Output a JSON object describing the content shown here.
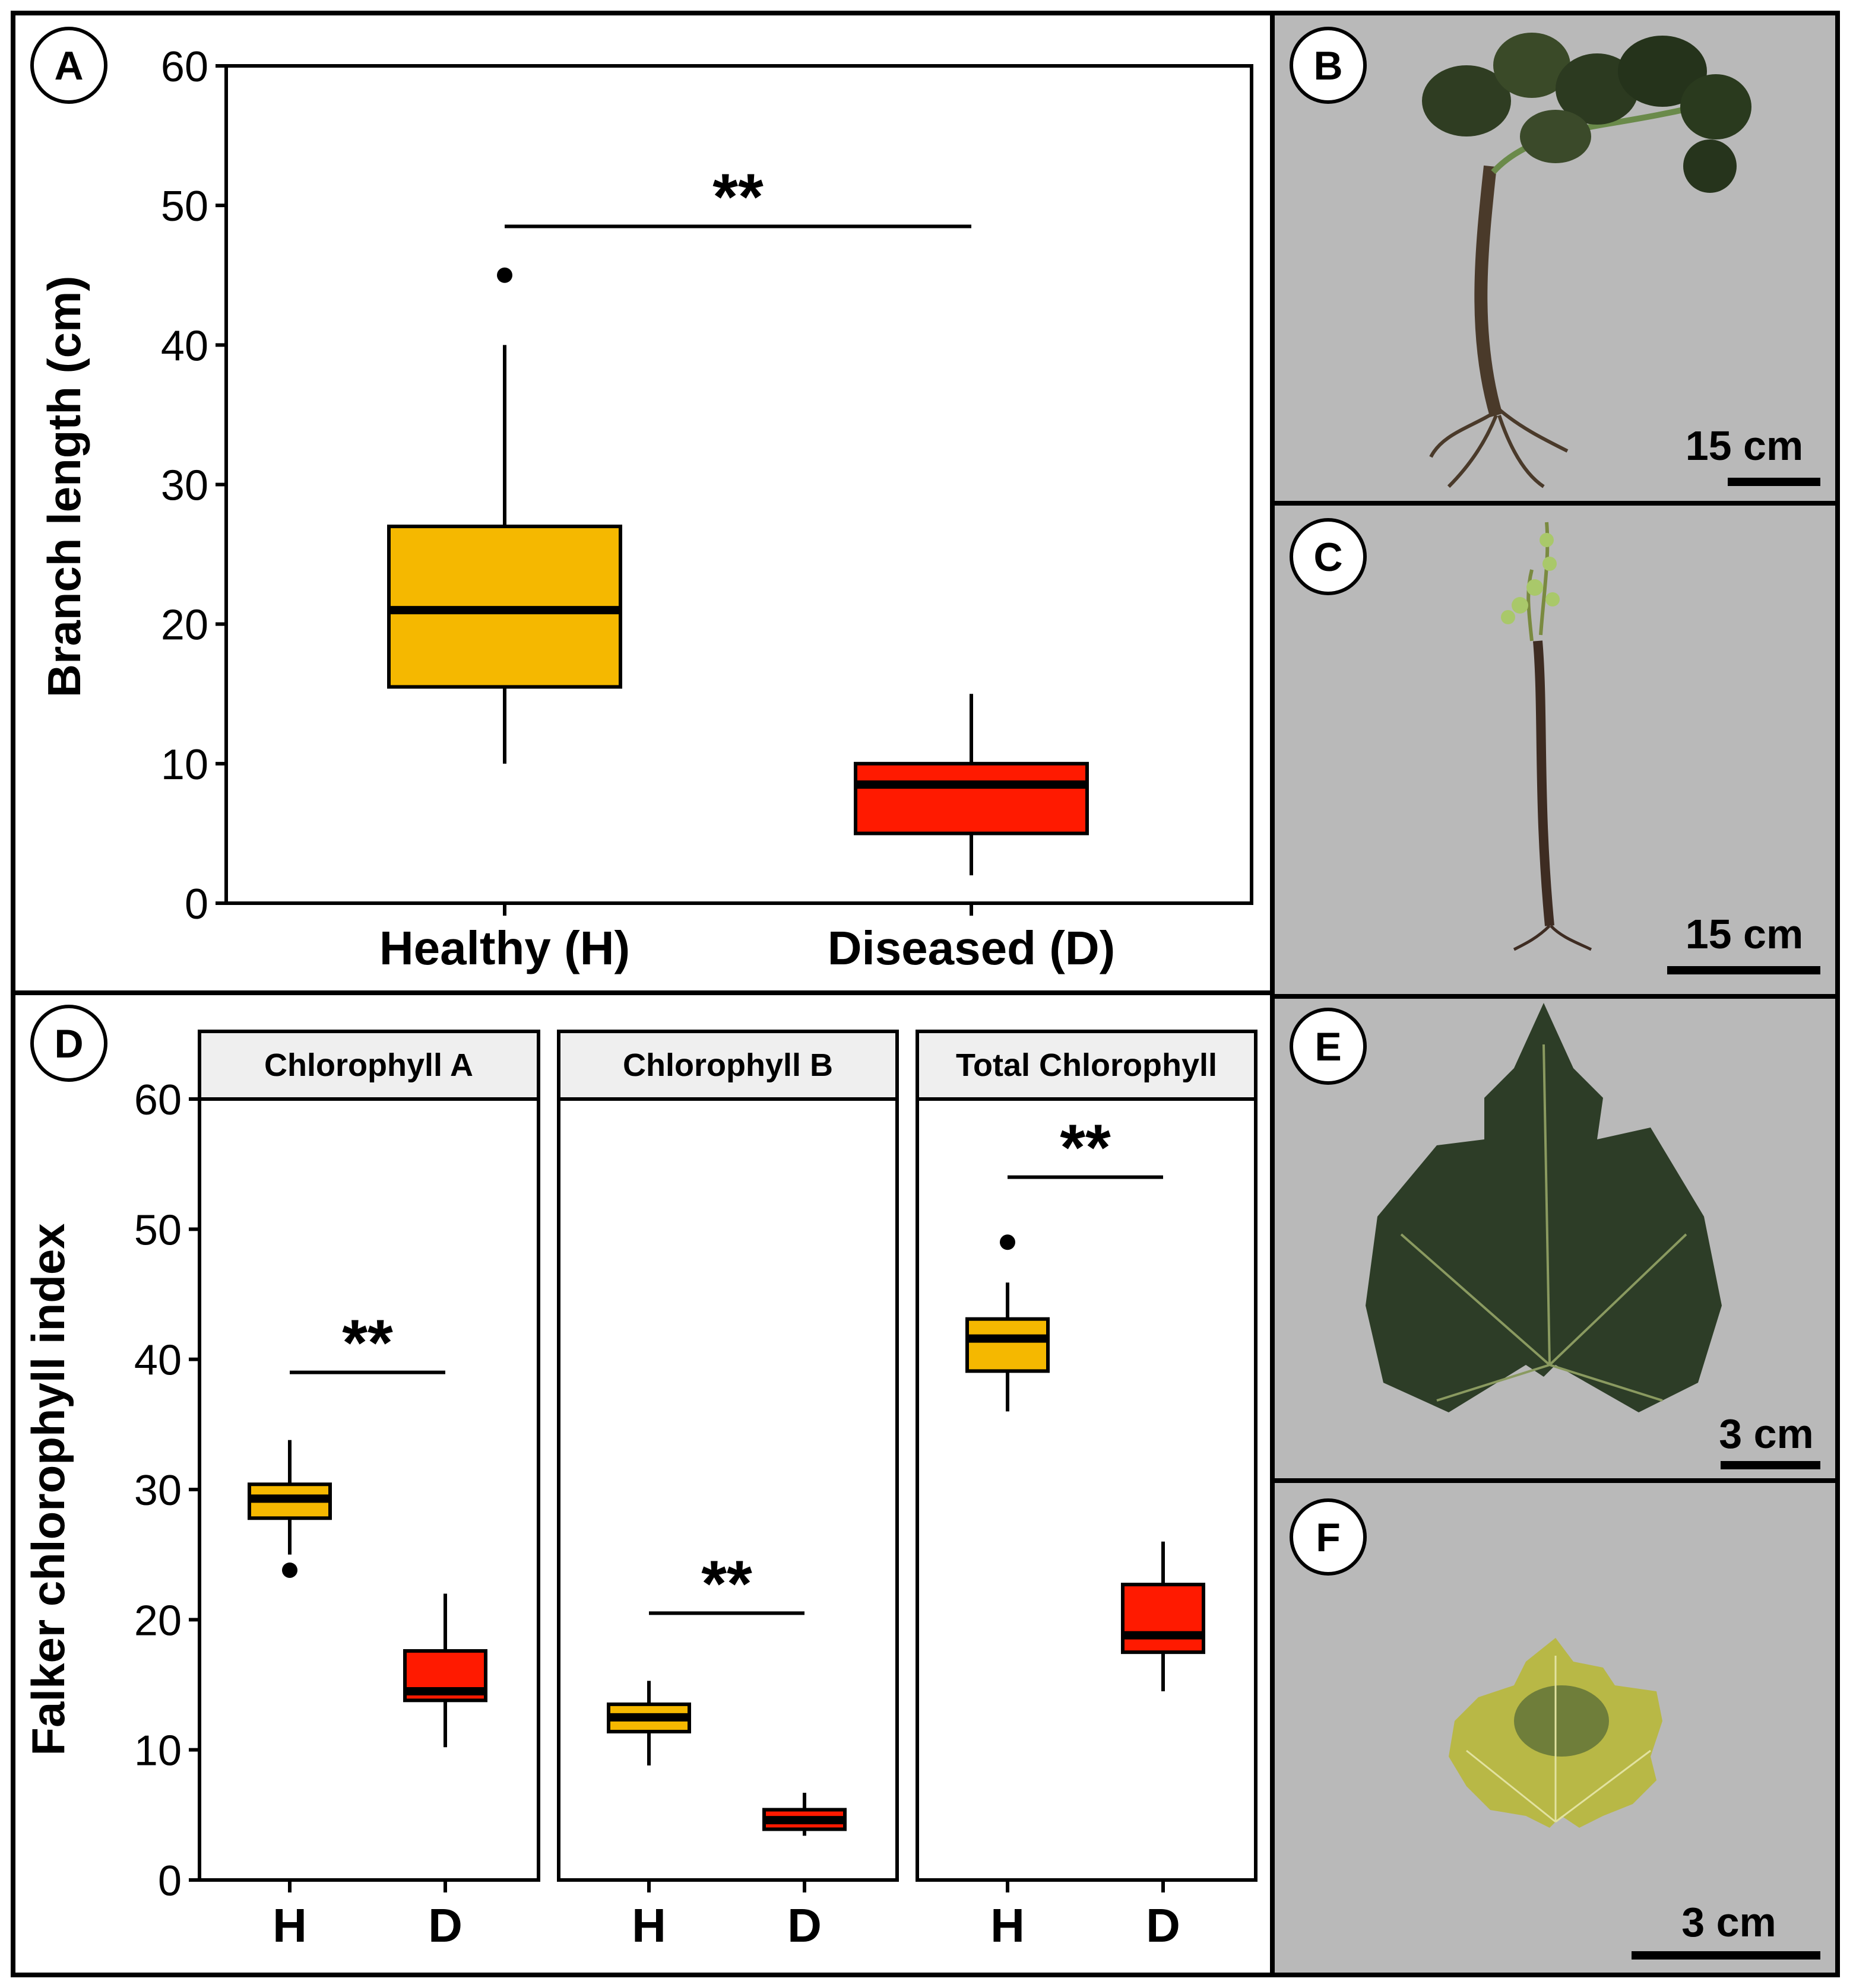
{
  "colors": {
    "healthy": "#f5b800",
    "diseased": "#ff1a00",
    "photo_bg": "#b9b9b9",
    "strip_bg": "#efefef",
    "ink": "#000000"
  },
  "panel_labels": {
    "A": "A",
    "B": "B",
    "C": "C",
    "D": "D",
    "E": "E",
    "F": "F"
  },
  "photos": {
    "B": {
      "scale_bar": "15 cm",
      "subject": "healthy grapevine plant"
    },
    "C": {
      "scale_bar": "15 cm",
      "subject": "diseased grapevine plant"
    },
    "E": {
      "scale_bar": "3 cm",
      "subject": "healthy leaf"
    },
    "F": {
      "scale_bar": "3 cm",
      "subject": "diseased leaf"
    }
  },
  "chart_data": [
    {
      "type": "box",
      "panel": "A",
      "ylabel": "Branch length (cm)",
      "ylim": [
        0,
        60
      ],
      "yticks": [
        0,
        10,
        20,
        30,
        40,
        50,
        60
      ],
      "categories": [
        "Healthy (H)",
        "Diseased (D)"
      ],
      "boxes": [
        {
          "name": "Healthy (H)",
          "color": "#f5b800",
          "min": 10,
          "q1": 15.5,
          "median": 21,
          "q3": 27,
          "max": 40,
          "outliers": [
            45
          ]
        },
        {
          "name": "Diseased (D)",
          "color": "#ff1a00",
          "min": 2,
          "q1": 5,
          "median": 8.5,
          "q3": 10,
          "max": 15,
          "outliers": []
        }
      ],
      "significance": {
        "label": "**",
        "y": 48.5
      }
    },
    {
      "type": "box",
      "panel": "D",
      "ylabel": "Falker chlorophyll index",
      "ylim": [
        0,
        60
      ],
      "yticks": [
        0,
        10,
        20,
        30,
        40,
        50,
        60
      ],
      "facets": [
        {
          "title": "Chlorophyll A",
          "categories": [
            "H",
            "D"
          ],
          "boxes": [
            {
              "name": "H",
              "color": "#f5b800",
              "min": 25,
              "q1": 27.8,
              "median": 29.3,
              "q3": 30.4,
              "max": 33.8,
              "outliers": [
                23.8
              ]
            },
            {
              "name": "D",
              "color": "#ff1a00",
              "min": 10.2,
              "q1": 13.8,
              "median": 14.5,
              "q3": 17.6,
              "max": 22,
              "outliers": []
            }
          ],
          "significance": {
            "label": "**",
            "y": 39
          }
        },
        {
          "title": "Chlorophyll B",
          "categories": [
            "H",
            "D"
          ],
          "boxes": [
            {
              "name": "H",
              "color": "#f5b800",
              "min": 8.8,
              "q1": 11.4,
              "median": 12.5,
              "q3": 13.5,
              "max": 15.3,
              "outliers": []
            },
            {
              "name": "D",
              "color": "#ff1a00",
              "min": 3.4,
              "q1": 3.9,
              "median": 4.6,
              "q3": 5.4,
              "max": 6.7,
              "outliers": []
            }
          ],
          "significance": {
            "label": "**",
            "y": 20.5
          }
        },
        {
          "title": "Total Chlorophyll",
          "categories": [
            "H",
            "D"
          ],
          "boxes": [
            {
              "name": "H",
              "color": "#f5b800",
              "min": 36,
              "q1": 39.1,
              "median": 41.6,
              "q3": 43.1,
              "max": 45.9,
              "outliers": [
                49
              ]
            },
            {
              "name": "D",
              "color": "#ff1a00",
              "min": 14.5,
              "q1": 17.5,
              "median": 18.8,
              "q3": 22.7,
              "max": 26,
              "outliers": []
            }
          ],
          "significance": {
            "label": "**",
            "y": 54
          }
        }
      ]
    }
  ]
}
